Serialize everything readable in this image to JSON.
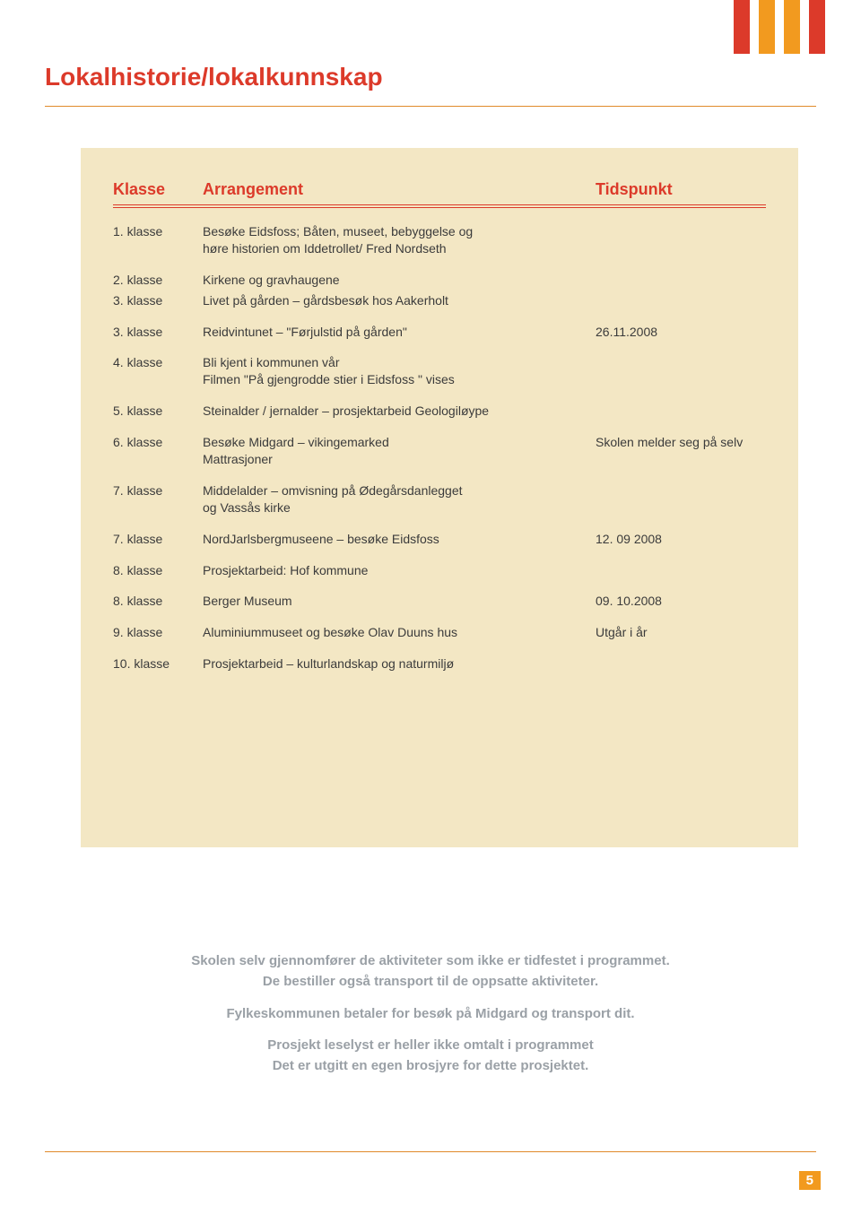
{
  "ribbon_colors": [
    "#dc3a2a",
    "#f29a1f",
    "#f29a1f",
    "#dc3a2a"
  ],
  "title": "Lokalhistorie/lokalkunnskap",
  "table": {
    "header": {
      "klasse": "Klasse",
      "arrangement": "Arrangement",
      "tidspunkt": "Tidspunkt"
    },
    "rows": [
      {
        "klasse": "1. klasse",
        "arrangement": "Besøke Eidsfoss; Båten, museet, bebyggelse og\nhøre historien om Iddetrollet/ Fred Nordseth",
        "tidspunkt": ""
      },
      {
        "klasse": "2. klasse",
        "arrangement": "Kirkene og gravhaugene",
        "tidspunkt": "",
        "tight": true
      },
      {
        "klasse": "3. klasse",
        "arrangement": "Livet på gården – gårdsbesøk hos Aakerholt",
        "tidspunkt": ""
      },
      {
        "klasse": "3. klasse",
        "arrangement": "Reidvintunet – \"Førjulstid på gården\"",
        "tidspunkt": "26.11.2008"
      },
      {
        "klasse": "4. klasse",
        "arrangement": "Bli kjent i kommunen vår\nFilmen \"På gjengrodde stier i Eidsfoss \" vises",
        "tidspunkt": ""
      },
      {
        "klasse": "5. klasse",
        "arrangement": "Steinalder / jernalder – prosjektarbeid Geologiløype",
        "tidspunkt": ""
      },
      {
        "klasse": "6. klasse",
        "arrangement": "Besøke Midgard – vikingemarked\nMattrasjoner",
        "tidspunkt": "Skolen melder seg på selv"
      },
      {
        "klasse": "7. klasse",
        "arrangement": "Middelalder – omvisning på Ødegårsdanlegget\nog Vassås kirke",
        "tidspunkt": ""
      },
      {
        "klasse": "7. klasse",
        "arrangement": "NordJarlsbergmuseene – besøke Eidsfoss",
        "tidspunkt": "12. 09 2008"
      },
      {
        "klasse": "8. klasse",
        "arrangement": "Prosjektarbeid: Hof kommune",
        "tidspunkt": ""
      },
      {
        "klasse": "8. klasse",
        "arrangement": "Berger Museum",
        "tidspunkt": "09. 10.2008"
      },
      {
        "klasse": "9. klasse",
        "arrangement": "Aluminiummuseet og besøke Olav Duuns hus",
        "tidspunkt": "Utgår i år"
      },
      {
        "klasse": "10. klasse",
        "arrangement": "Prosjektarbeid – kulturlandskap og naturmiljø",
        "tidspunkt": ""
      }
    ]
  },
  "footer": {
    "p1": "Skolen selv gjennomfører de aktiviteter som ikke er tidfestet i programmet.\nDe bestiller også transport til de oppsatte aktiviteter.",
    "p2": "Fylkeskommunen betaler for besøk på Midgard og transport dit.",
    "p3": "Prosjekt leselyst er heller ikke omtalt i programmet\nDet er utgitt en egen brosjyre for dette prosjektet."
  },
  "page_number": "5",
  "colors": {
    "accent_red": "#dc3a2a",
    "accent_orange": "#f29a1f",
    "rule_orange": "#e08a2a",
    "card_bg": "#f3e7c4",
    "footer_gray": "#9aa0a6"
  }
}
